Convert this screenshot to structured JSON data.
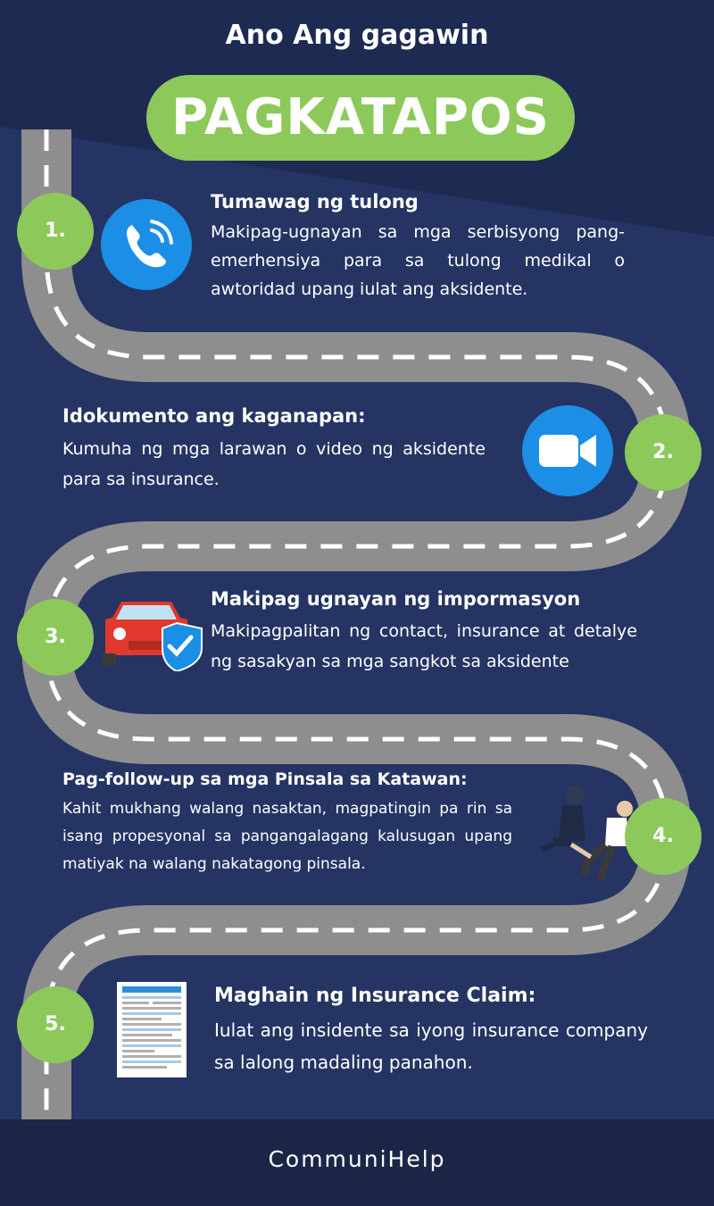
{
  "header": {
    "subtitle": "Ano Ang gagawin",
    "title": "PAGKATAPOS"
  },
  "steps": [
    {
      "number": "1.",
      "heading": "Tumawag ng tulong",
      "text": "Makipag-ugnayan sa mga serbisyong pang-emerhensiya para sa tulong medikal o awtoridad upang iulat ang aksidente.",
      "icon": "phone-call-icon"
    },
    {
      "number": "2.",
      "heading": "Idokumento ang kaganapan:",
      "text": "Kumuha ng mga larawan o video ng aksidente para sa insurance.",
      "icon": "video-camera-icon"
    },
    {
      "number": "3.",
      "heading": "Makipag ugnayan ng impormasyon",
      "text": "Makipagpalitan ng contact, insurance at detalye ng sasakyan sa mga sangkot sa aksidente",
      "icon": "car-shield-icon"
    },
    {
      "number": "4.",
      "heading": "Pag-follow-up sa mga Pinsala sa Katawan:",
      "text": "Kahit mukhang walang nasaktan, magpatingin pa rin sa isang propesyonal sa pangangalagang kalusugan upang matiyak na walang nakatagong pinsala.",
      "icon": "first-aid-people-icon"
    },
    {
      "number": "5.",
      "heading": "Maghain ng Insurance Claim:",
      "text": "Iulat ang insidente sa iyong insurance company sa lalong madaling panahon.",
      "icon": "claim-form-icon"
    }
  ],
  "footer": {
    "brand": "CommuniHelp"
  },
  "colors": {
    "background": "#253463",
    "accent_green": "#8cc95a",
    "road": "#8e8e8e",
    "footer": "#1b2647",
    "icon_blue": "#1b8ee6"
  }
}
